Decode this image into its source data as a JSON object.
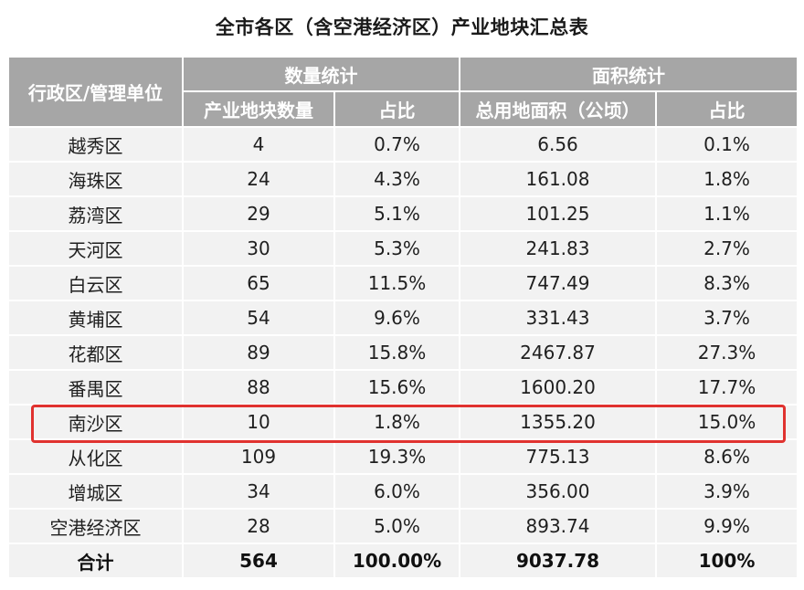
{
  "title": "全市各区（含空港经济区）产业地块汇总表",
  "header": {
    "district": "行政区/管理单位",
    "group_count": "数量统计",
    "group_area": "面积统计",
    "count": "产业地块数量",
    "count_share": "占比",
    "area": "总用地面积（公顷）",
    "area_share": "占比"
  },
  "rows": [
    {
      "district": "越秀区",
      "count": "4",
      "count_share": "0.7%",
      "area": "6.56",
      "area_share": "0.1%"
    },
    {
      "district": "海珠区",
      "count": "24",
      "count_share": "4.3%",
      "area": "161.08",
      "area_share": "1.8%"
    },
    {
      "district": "荔湾区",
      "count": "29",
      "count_share": "5.1%",
      "area": "101.25",
      "area_share": "1.1%"
    },
    {
      "district": "天河区",
      "count": "30",
      "count_share": "5.3%",
      "area": "241.83",
      "area_share": "2.7%"
    },
    {
      "district": "白云区",
      "count": "65",
      "count_share": "11.5%",
      "area": "747.49",
      "area_share": "8.3%"
    },
    {
      "district": "黄埔区",
      "count": "54",
      "count_share": "9.6%",
      "area": "331.43",
      "area_share": "3.7%"
    },
    {
      "district": "花都区",
      "count": "89",
      "count_share": "15.8%",
      "area": "2467.87",
      "area_share": "27.3%"
    },
    {
      "district": "番禺区",
      "count": "88",
      "count_share": "15.6%",
      "area": "1600.20",
      "area_share": "17.7%"
    },
    {
      "district": "南沙区",
      "count": "10",
      "count_share": "1.8%",
      "area": "1355.20",
      "area_share": "15.0%"
    },
    {
      "district": "从化区",
      "count": "109",
      "count_share": "19.3%",
      "area": "775.13",
      "area_share": "8.6%"
    },
    {
      "district": "增城区",
      "count": "34",
      "count_share": "6.0%",
      "area": "356.00",
      "area_share": "3.9%"
    },
    {
      "district": "空港经济区",
      "count": "28",
      "count_share": "5.0%",
      "area": "893.74",
      "area_share": "9.9%"
    }
  ],
  "total": {
    "district": "合计",
    "count": "564",
    "count_share": "100.00%",
    "area": "9037.78",
    "area_share": "100%"
  },
  "colors": {
    "header_bg": "#a6a6a6",
    "cell_bg": "#f2f2f2",
    "highlight": "#e0322f"
  }
}
